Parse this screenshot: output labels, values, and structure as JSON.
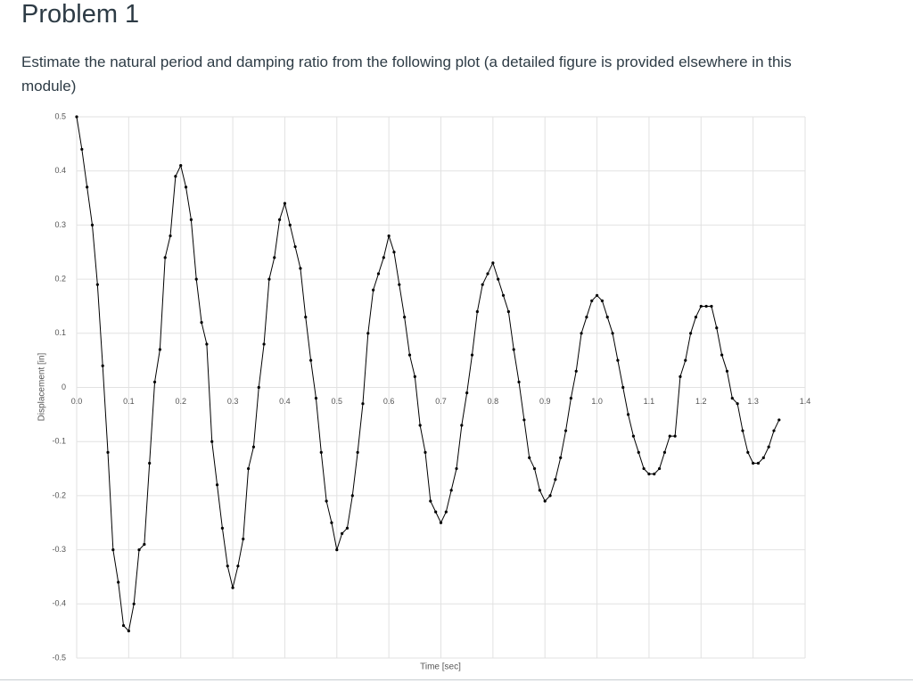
{
  "heading": "Problem 1",
  "text": "Estimate the natural period and damping ratio from the following plot (a detailed figure is provided elsewhere in this module)",
  "chart_data": {
    "type": "line",
    "xlabel": "Time [sec]",
    "ylabel": "Displacement [in]",
    "color": "#000000",
    "grid": true,
    "markers": true,
    "xlim": [
      0,
      1.4
    ],
    "ylim": [
      -0.5,
      0.5
    ],
    "xticks": [
      {
        "value": 0,
        "label": "0.0"
      },
      0.1,
      0.2,
      0.3,
      0.4,
      0.5,
      0.6,
      0.7,
      0.8,
      0.9,
      {
        "value": 1,
        "label": "1.0"
      },
      1.1,
      1.2,
      1.3,
      1.4
    ],
    "yticks": [
      0.5,
      0.4,
      0.3,
      0.2,
      0.1,
      0,
      -0.1,
      -0.2,
      -0.3,
      -0.4,
      -0.5
    ],
    "x": [
      0,
      0.01,
      0.02,
      0.03,
      0.04,
      0.05,
      0.06,
      0.07,
      0.08,
      0.09,
      0.1,
      0.11,
      0.12,
      0.13,
      0.14,
      0.15,
      0.16,
      0.17,
      0.18,
      0.19,
      0.2,
      0.21,
      0.22,
      0.23,
      0.24,
      0.25,
      0.26,
      0.27,
      0.28,
      0.29,
      0.3,
      0.31,
      0.32,
      0.33,
      0.34,
      0.35,
      0.36,
      0.37,
      0.38,
      0.39,
      0.4,
      0.41,
      0.42,
      0.43,
      0.44,
      0.45,
      0.46,
      0.47,
      0.48,
      0.49,
      0.5,
      0.51,
      0.52,
      0.53,
      0.54,
      0.55,
      0.56,
      0.57,
      0.58,
      0.59,
      0.6,
      0.61,
      0.62,
      0.63,
      0.64,
      0.65,
      0.66,
      0.67,
      0.68,
      0.69,
      0.7,
      0.71,
      0.72,
      0.73,
      0.74,
      0.75,
      0.76,
      0.77,
      0.78,
      0.79,
      0.8,
      0.81,
      0.82,
      0.83,
      0.84,
      0.85,
      0.86,
      0.87,
      0.88,
      0.89,
      0.9,
      0.91,
      0.92,
      0.93,
      0.94,
      0.95,
      0.96,
      0.97,
      0.98,
      0.99,
      1,
      1.01,
      1.02,
      1.03,
      1.04,
      1.05,
      1.06,
      1.07,
      1.08,
      1.09,
      1.1,
      1.11,
      1.12,
      1.13,
      1.14,
      1.15,
      1.16,
      1.17,
      1.18,
      1.19,
      1.2,
      1.21,
      1.22,
      1.23,
      1.24,
      1.25,
      1.26,
      1.27,
      1.28,
      1.29,
      1.3,
      1.31,
      1.32,
      1.33,
      1.34,
      1.35
    ],
    "values": [
      0.5,
      0.44,
      0.37,
      0.3,
      0.19,
      0.04,
      -0.12,
      -0.3,
      -0.36,
      -0.44,
      -0.45,
      -0.4,
      -0.3,
      -0.29,
      -0.14,
      0.01,
      0.07,
      0.24,
      0.28,
      0.39,
      0.41,
      0.37,
      0.31,
      0.2,
      0.12,
      0.08,
      -0.1,
      -0.18,
      -0.26,
      -0.33,
      -0.37,
      -0.33,
      -0.28,
      -0.15,
      -0.11,
      0,
      0.08,
      0.2,
      0.24,
      0.31,
      0.34,
      0.3,
      0.26,
      0.22,
      0.13,
      0.05,
      -0.02,
      -0.12,
      -0.21,
      -0.25,
      -0.3,
      -0.27,
      -0.26,
      -0.2,
      -0.12,
      -0.03,
      0.1,
      0.18,
      0.21,
      0.24,
      0.28,
      0.25,
      0.19,
      0.13,
      0.06,
      0.02,
      -0.07,
      -0.12,
      -0.21,
      -0.23,
      -0.25,
      -0.23,
      -0.19,
      -0.15,
      -0.07,
      -0.01,
      0.06,
      0.14,
      0.19,
      0.21,
      0.23,
      0.2,
      0.17,
      0.14,
      0.07,
      0.01,
      -0.06,
      -0.13,
      -0.15,
      -0.19,
      -0.21,
      -0.2,
      -0.17,
      -0.13,
      -0.08,
      -0.02,
      0.03,
      0.1,
      0.13,
      0.16,
      0.17,
      0.16,
      0.13,
      0.1,
      0.05,
      0,
      -0.05,
      -0.09,
      -0.12,
      -0.15,
      -0.16,
      -0.16,
      -0.15,
      -0.12,
      -0.09,
      -0.09,
      0.02,
      0.05,
      0.1,
      0.13,
      0.15,
      0.15,
      0.15,
      0.11,
      0.06,
      0.03,
      -0.02,
      -0.03,
      -0.08,
      -0.12,
      -0.14,
      -0.14,
      -0.13,
      -0.11,
      -0.08,
      -0.06
    ]
  }
}
